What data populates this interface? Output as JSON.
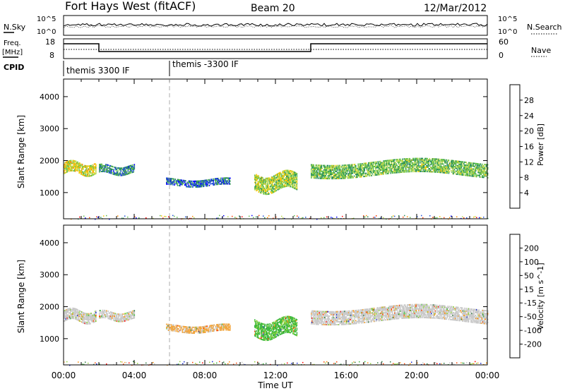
{
  "header": {
    "title": "Fort Hays West (fitACF)",
    "beam": "Beam 20",
    "date": "12/Mar/2012"
  },
  "noise_panel": {
    "left_label": "N.Sky",
    "right_label": "N.Search",
    "ticks": [
      "10^5",
      "10^0"
    ]
  },
  "freq_panel": {
    "left_label_line1": "Freq.",
    "left_label_line2": "[MHz]",
    "right_label": "Nave",
    "left_ticks": [
      "18",
      "8"
    ],
    "right_ticks": [
      "60",
      "0"
    ]
  },
  "cpid_panel": {
    "label": "CPID",
    "modes": [
      {
        "text": "themis 3300 IF",
        "start_hour": 0
      },
      {
        "text": "themis -3300 IF",
        "start_hour": 6
      }
    ]
  },
  "colors": {
    "power": [
      "#0000ff",
      "#1f4fd9",
      "#2a8f5a",
      "#5fbf4a",
      "#b8d84a",
      "#f5c400",
      "#ff8c00",
      "#ff3d00",
      "#ff0000"
    ],
    "velocity": [
      "#1b2bd1",
      "#2c7a3d",
      "#3cb83c",
      "#8fd23a",
      "#c8c8c8",
      "#f2a43a",
      "#ff8a00",
      "#ff4500",
      "#ff0000"
    ]
  },
  "chart_data": [
    {
      "type": "heatmap",
      "name": "power",
      "xlabel": "",
      "ylabel": "Slant Range [km]",
      "yticks": [
        1000,
        2000,
        3000,
        4000
      ],
      "ylim": [
        180,
        4550
      ],
      "xlim": [
        0,
        24
      ],
      "colorbar": {
        "label": "Power [dB]",
        "ticks": [
          "4",
          "8",
          "12",
          "16",
          "20",
          "24",
          "28"
        ],
        "range": [
          0,
          30
        ]
      },
      "echo_regions": [
        {
          "t_start": 0.0,
          "t_end": 1.8,
          "range_center": 1750,
          "range_width": 350,
          "value": 16
        },
        {
          "t_start": 2.0,
          "t_end": 4.0,
          "range_center": 1700,
          "range_width": 250,
          "value": 8
        },
        {
          "t_start": 5.8,
          "t_end": 9.4,
          "range_center": 1300,
          "range_width": 200,
          "value": 6
        },
        {
          "t_start": 10.8,
          "t_end": 13.2,
          "range_center": 1300,
          "range_width": 500,
          "value": 14
        },
        {
          "t_start": 14.0,
          "t_end": 24.0,
          "range_center": 1750,
          "range_width": 450,
          "value": 12
        }
      ]
    },
    {
      "type": "heatmap",
      "name": "velocity",
      "xlabel": "Time UT",
      "ylabel": "Slant Range [km]",
      "yticks": [
        1000,
        2000,
        3000,
        4000
      ],
      "ylim": [
        180,
        4550
      ],
      "xlim": [
        0,
        24
      ],
      "xticks": [
        "00:00",
        "04:00",
        "08:00",
        "12:00",
        "16:00",
        "20:00",
        "00:00"
      ],
      "colorbar": {
        "label": "Velocity [m s^-1]",
        "ticks": [
          "200",
          "100",
          "50",
          "15",
          "-15",
          "-50",
          "-100",
          "-200"
        ],
        "range": [
          -250,
          250
        ]
      },
      "echo_regions": [
        {
          "t_start": 0.0,
          "t_end": 1.8,
          "range_center": 1700,
          "range_width": 350,
          "value": 0
        },
        {
          "t_start": 2.0,
          "t_end": 4.0,
          "range_center": 1700,
          "range_width": 250,
          "value": 0
        },
        {
          "t_start": 5.8,
          "t_end": 9.4,
          "range_center": 1300,
          "range_width": 200,
          "value": -40
        },
        {
          "t_start": 10.8,
          "t_end": 13.2,
          "range_center": 1300,
          "range_width": 500,
          "value": 100
        },
        {
          "t_start": 14.0,
          "t_end": 24.0,
          "range_center": 1750,
          "range_width": 450,
          "value": 0
        }
      ]
    }
  ]
}
